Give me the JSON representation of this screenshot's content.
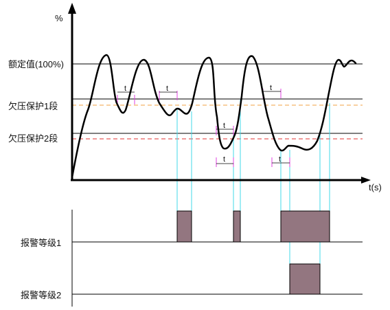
{
  "axis": {
    "y_unit": "%",
    "x_label": "t(s)"
  },
  "levels": {
    "rated": "额定值(100%)",
    "undervoltage_1": "欠压保护1段",
    "undervoltage_2": "欠压保护2段"
  },
  "delay_label": "t",
  "alarms": {
    "level_1": "报警等级1",
    "level_2": "报警等级2"
  },
  "colors": {
    "curve": "#000000",
    "threshold_1_dash": "#f0a040",
    "threshold_2_dash": "#e03030",
    "guide_lines": "#40d8e8",
    "delay_marks": "#e040e0",
    "alarm_fill": "#937680"
  }
}
